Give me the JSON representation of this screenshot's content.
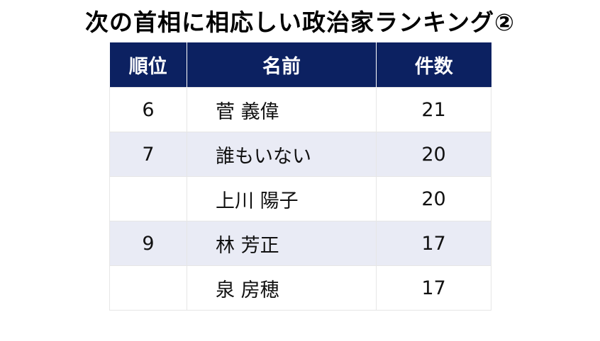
{
  "title": "次の首相に相応しい政治家ランキング②",
  "table": {
    "headers": {
      "rank": "順位",
      "name": "名前",
      "count": "件数"
    },
    "rows": [
      {
        "rank": "6",
        "name": "菅 義偉",
        "count": "21"
      },
      {
        "rank": "7",
        "name": "誰もいない",
        "count": "20"
      },
      {
        "rank": "",
        "name": "上川 陽子",
        "count": "20"
      },
      {
        "rank": "9",
        "name": "林 芳正",
        "count": "17"
      },
      {
        "rank": "",
        "name": "泉 房穂",
        "count": "17"
      }
    ]
  },
  "colors": {
    "header_bg": "#0c2161",
    "header_text": "#ffffff",
    "band_row_bg": "#e9ebf5",
    "plain_row_bg": "#ffffff"
  }
}
